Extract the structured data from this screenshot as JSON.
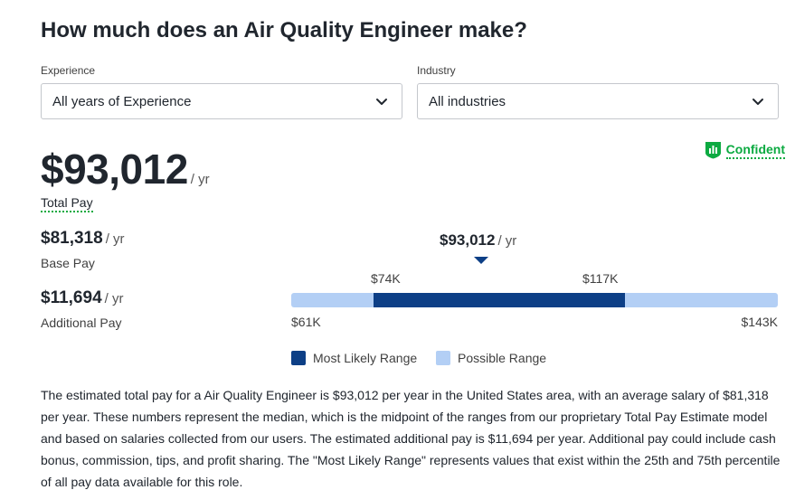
{
  "header": {
    "title": "How much does an Air Quality Engineer make?"
  },
  "filters": {
    "experience": {
      "label": "Experience",
      "value": "All years of Experience"
    },
    "industry": {
      "label": "Industry",
      "value": "All industries"
    }
  },
  "confidence": {
    "label": "Confident",
    "color": "#0caa41"
  },
  "total_pay": {
    "amount": "$93,012",
    "unit": "/ yr",
    "label": "Total Pay"
  },
  "base_pay": {
    "amount": "$81,318",
    "unit": "/ yr",
    "label": "Base Pay"
  },
  "additional_pay": {
    "amount": "$11,694",
    "unit": "/ yr",
    "label": "Additional Pay"
  },
  "range": {
    "median": {
      "amount": "$93,012",
      "unit": "/ yr",
      "value": 93012
    },
    "likely_low": {
      "label": "$74K",
      "value": 74000
    },
    "likely_high": {
      "label": "$117K",
      "value": 117000
    },
    "possible_low": {
      "label": "$61K",
      "value": 61000
    },
    "possible_high": {
      "label": "$143K",
      "value": 143000
    },
    "colors": {
      "likely": "#0d3f86",
      "possible": "#b3cff5"
    }
  },
  "legend": {
    "likely": "Most Likely Range",
    "possible": "Possible Range"
  },
  "description": "The estimated total pay for a Air Quality Engineer is $93,012 per year in the United States area, with an average salary of $81,318 per year. These numbers represent the median, which is the midpoint of the ranges from our proprietary Total Pay Estimate model and based on salaries collected from our users. The estimated additional pay is $11,694 per year. Additional pay could include cash bonus, commission, tips, and profit sharing. The \"Most Likely Range\" represents values that exist within the 25th and 75th percentile of all pay data available for this role."
}
